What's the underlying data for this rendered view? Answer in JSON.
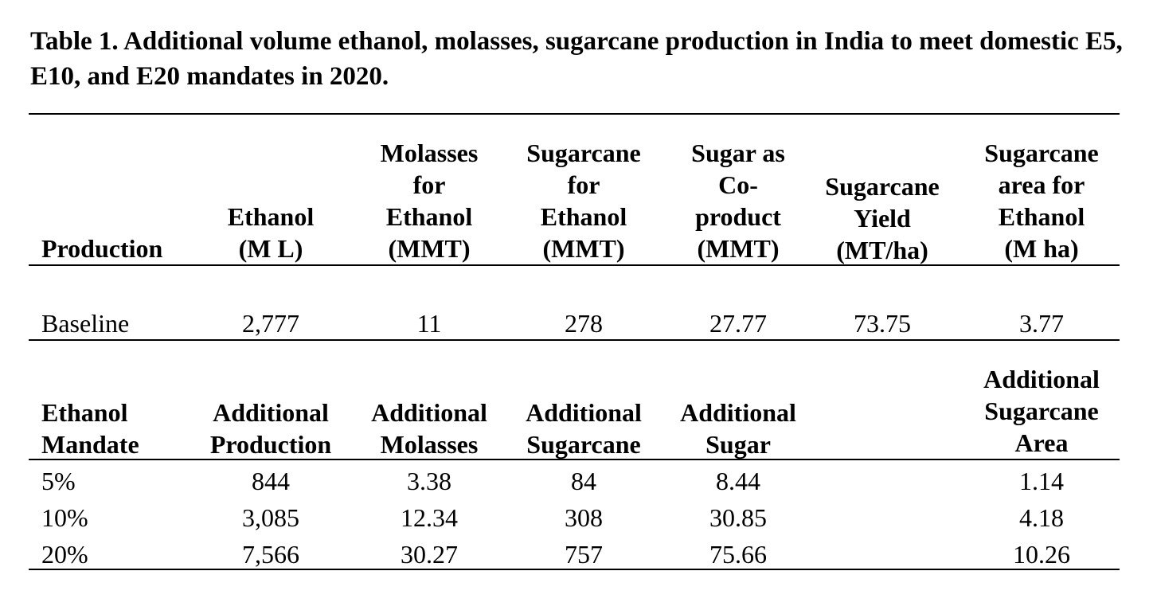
{
  "caption": "Table 1. Additional volume ethanol, molasses, sugarcane production in India to meet domestic E5, E10, and E20 mandates in 2020.",
  "header1": {
    "production": [
      "Production"
    ],
    "ethanol": [
      "Ethanol",
      "(M L)"
    ],
    "molasses": [
      "Molasses",
      "for",
      "Ethanol",
      "(MMT)"
    ],
    "sugarcane": [
      "Sugarcane",
      "for",
      "Ethanol",
      "(MMT)"
    ],
    "sugar": [
      "Sugar as",
      "Co-",
      "product",
      "(MMT)"
    ],
    "yield": [
      "Sugarcane",
      "Yield",
      "(MT/ha)"
    ],
    "area": [
      "Sugarcane",
      "area for",
      "Ethanol",
      "(M ha)"
    ]
  },
  "baseline": [
    "Baseline",
    "2,777",
    "11",
    "278",
    "27.77",
    "73.75",
    "3.77"
  ],
  "header2": {
    "mandate": [
      "Ethanol",
      "Mandate"
    ],
    "production": [
      "Additional",
      "Production"
    ],
    "molasses": [
      "Additional",
      "Molasses"
    ],
    "sugarcane": [
      "Additional",
      "Sugarcane"
    ],
    "sugar": [
      "Additional",
      "Sugar"
    ],
    "area": [
      "Additional",
      "Sugarcane",
      "Area"
    ]
  },
  "rows": [
    [
      "5%",
      "844",
      "3.38",
      "84",
      "8.44",
      "1.14"
    ],
    [
      "10%",
      "3,085",
      "12.34",
      "308",
      "30.85",
      "4.18"
    ],
    [
      "20%",
      "7,566",
      "30.27",
      "757",
      "75.66",
      "10.26"
    ]
  ]
}
